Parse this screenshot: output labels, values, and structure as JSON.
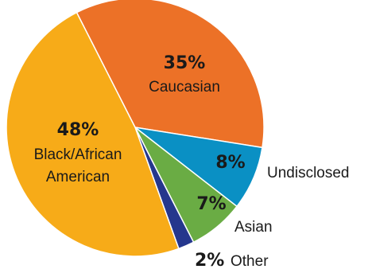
{
  "chart_data": {
    "type": "pie",
    "slices": [
      {
        "category": "Caucasian",
        "value": 35,
        "value_label": "35%",
        "color": "#ec7127"
      },
      {
        "category": "Undisclosed",
        "value": 8,
        "value_label": "8%",
        "color": "#0a90c4"
      },
      {
        "category": "Asian",
        "value": 7,
        "value_label": "7%",
        "color": "#6aac44"
      },
      {
        "category": "Other",
        "value": 2,
        "value_label": "2%",
        "color": "#25378d"
      },
      {
        "category_lines": [
          "Black/African",
          "American"
        ],
        "value": 48,
        "value_label": "48%",
        "color": "#f7ab18"
      }
    ]
  }
}
